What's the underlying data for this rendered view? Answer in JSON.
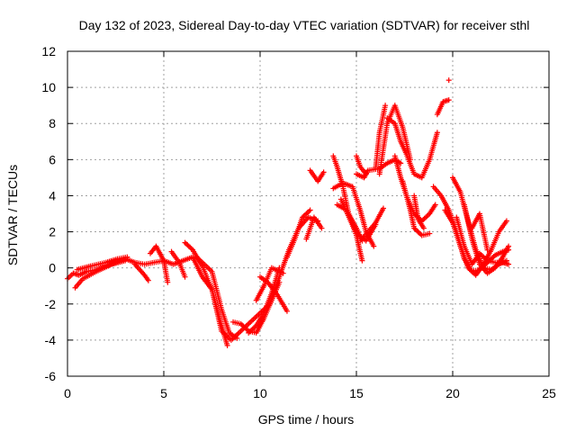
{
  "chart_data": {
    "type": "scatter",
    "title": "Day 132 of 2023, Sidereal Day-to-day VTEC variation (SDTVAR) for receiver sthl",
    "xlabel": "GPS time / hours",
    "ylabel": "SDTVAR / TECUs",
    "xlim": [
      0,
      25
    ],
    "ylim": [
      -6,
      12
    ],
    "xticks": [
      "0",
      "5",
      "10",
      "15",
      "20",
      "25"
    ],
    "yticks": [
      "-6",
      "-4",
      "-2",
      "0",
      "2",
      "4",
      "6",
      "8",
      "10",
      "12"
    ],
    "grid": true,
    "marker": "+",
    "marker_color": "#ff0000",
    "series": [
      {
        "name": "main",
        "x": [
          0.0,
          0.3,
          0.6,
          1.0,
          1.5,
          2.0,
          2.5,
          3.0,
          3.5,
          4.0,
          4.5,
          5.0,
          5.5,
          6.0,
          6.5,
          7.0,
          7.5,
          8.0,
          8.5,
          9.0,
          9.5,
          10.0,
          10.5,
          11.0,
          11.5,
          12.0,
          12.5,
          13.0
        ],
        "y": [
          -0.6,
          -0.3,
          -0.4,
          -0.2,
          -0.1,
          0.1,
          0.3,
          0.5,
          0.3,
          0.2,
          0.3,
          0.4,
          0.2,
          0.4,
          0.6,
          -0.5,
          -1.2,
          -3.5,
          -4.0,
          -3.5,
          -3.0,
          -2.5,
          -2.0,
          -0.5,
          1.0,
          2.2,
          2.8,
          2.6
        ]
      },
      {
        "name": "s1",
        "x": [
          0.4,
          0.8,
          1.5,
          2.3,
          3.0
        ],
        "y": [
          -1.1,
          -0.6,
          -0.2,
          0.2,
          0.4
        ]
      },
      {
        "name": "s2",
        "x": [
          0.5,
          1.2,
          2.0,
          2.6,
          3.1
        ],
        "y": [
          -0.1,
          0.1,
          0.3,
          0.5,
          0.6
        ]
      },
      {
        "name": "s3",
        "x": [
          3.5,
          4.0,
          4.2
        ],
        "y": [
          0.2,
          -0.4,
          -0.7
        ]
      },
      {
        "name": "s4",
        "x": [
          4.3,
          4.6,
          5.0,
          5.2
        ],
        "y": [
          0.8,
          1.2,
          0.4,
          -0.8
        ]
      },
      {
        "name": "s5",
        "x": [
          5.4,
          5.8,
          6.1
        ],
        "y": [
          0.9,
          0.3,
          -0.5
        ]
      },
      {
        "name": "s6",
        "x": [
          6.1,
          6.5,
          7.0,
          7.5,
          8.0,
          8.3
        ],
        "y": [
          1.4,
          1.0,
          0.1,
          -1.2,
          -3.2,
          -4.3
        ]
      },
      {
        "name": "s7",
        "x": [
          6.7,
          7.5,
          8.0,
          8.4,
          8.8
        ],
        "y": [
          0.6,
          -0.2,
          -2.3,
          -3.6,
          -3.9
        ]
      },
      {
        "name": "s8",
        "x": [
          8.6,
          9.0,
          9.4,
          9.8,
          10.2,
          10.6,
          11.0
        ],
        "y": [
          -3.0,
          -3.1,
          -3.5,
          -3.6,
          -2.8,
          -1.8,
          -0.8
        ]
      },
      {
        "name": "s9",
        "x": [
          9.4,
          9.8,
          10.2,
          10.6,
          11.0
        ],
        "y": [
          -3.6,
          -3.2,
          -2.5,
          -1.4,
          0.0
        ]
      },
      {
        "name": "s10",
        "x": [
          9.8,
          10.2,
          10.6,
          11.2
        ],
        "y": [
          -1.8,
          -1.0,
          0.0,
          -0.3
        ]
      },
      {
        "name": "s11",
        "x": [
          10.0,
          10.4,
          10.9,
          11.4
        ],
        "y": [
          -0.5,
          -0.8,
          -1.5,
          -2.4
        ]
      },
      {
        "name": "s12",
        "x": [
          11.4,
          11.8,
          12.2,
          12.6
        ],
        "y": [
          0.6,
          1.6,
          2.8,
          3.2
        ]
      },
      {
        "name": "s13",
        "x": [
          12.4,
          12.8,
          13.2
        ],
        "y": [
          1.6,
          2.8,
          2.2
        ]
      },
      {
        "name": "s14",
        "x": [
          12.6,
          13.0,
          13.3
        ],
        "y": [
          5.4,
          4.8,
          5.3
        ]
      },
      {
        "name": "s15",
        "x": [
          13.8,
          14.0,
          14.3,
          14.6,
          15.0,
          15.3
        ],
        "y": [
          6.2,
          5.6,
          4.5,
          3.0,
          2.2,
          1.5
        ]
      },
      {
        "name": "s16",
        "x": [
          13.8,
          14.3,
          14.8,
          15.2,
          15.5,
          15.9
        ],
        "y": [
          4.4,
          4.7,
          4.5,
          3.2,
          2.0,
          1.2
        ]
      },
      {
        "name": "s17",
        "x": [
          14.0,
          14.5,
          15.0,
          15.3
        ],
        "y": [
          3.5,
          3.2,
          1.8,
          0.4
        ]
      },
      {
        "name": "s18",
        "x": [
          14.2,
          14.7,
          15.1,
          15.5,
          16.0
        ],
        "y": [
          3.8,
          2.6,
          1.8,
          1.5,
          2.4
        ]
      },
      {
        "name": "s19",
        "x": [
          15.0,
          15.4,
          15.6,
          16.2,
          16.6,
          17.0,
          17.3
        ],
        "y": [
          5.2,
          5.0,
          5.4,
          5.5,
          5.8,
          6.0,
          5.8
        ]
      },
      {
        "name": "s20",
        "x": [
          15.0,
          15.2,
          15.5
        ],
        "y": [
          6.2,
          5.6,
          5.2
        ]
      },
      {
        "name": "s21",
        "x": [
          15.2,
          15.6,
          16.0,
          16.4
        ],
        "y": [
          1.5,
          2.0,
          2.5,
          3.3
        ]
      },
      {
        "name": "s22",
        "x": [
          16.0,
          16.2,
          16.5
        ],
        "y": [
          5.5,
          7.5,
          9.0
        ]
      },
      {
        "name": "s23",
        "x": [
          16.2,
          16.6,
          17.0,
          17.4,
          17.8
        ],
        "y": [
          5.2,
          8.0,
          9.0,
          7.8,
          6.0
        ]
      },
      {
        "name": "s24",
        "x": [
          16.6,
          17.0,
          17.3,
          17.6,
          18.0,
          18.4,
          18.8,
          19.2
        ],
        "y": [
          8.3,
          8.0,
          7.0,
          6.3,
          5.2,
          5.0,
          6.0,
          7.5
        ]
      },
      {
        "name": "s25",
        "x": [
          17.0,
          17.3,
          17.6,
          18.0,
          18.4,
          18.8,
          19.1
        ],
        "y": [
          6.2,
          5.0,
          4.0,
          3.0,
          2.6,
          3.0,
          3.5
        ]
      },
      {
        "name": "s26",
        "x": [
          17.4,
          17.8,
          18.0,
          18.4,
          18.8
        ],
        "y": [
          4.8,
          3.2,
          2.2,
          1.8,
          1.9
        ]
      },
      {
        "name": "s27",
        "x": [
          18.0,
          18.2,
          18.5
        ],
        "y": [
          4.0,
          2.7,
          2.2
        ]
      },
      {
        "name": "s28",
        "x": [
          19.2,
          19.5,
          19.8
        ],
        "y": [
          8.5,
          9.2,
          9.3
        ]
      },
      {
        "name": "s29",
        "x": [
          19.8
        ],
        "y": [
          10.4
        ]
      },
      {
        "name": "s30",
        "x": [
          19.0,
          19.4,
          19.8,
          20.2,
          20.6,
          21.0,
          21.4,
          21.8,
          22.2,
          22.6,
          22.9
        ],
        "y": [
          4.5,
          4.0,
          3.2,
          2.0,
          0.5,
          -0.2,
          -0.1,
          0.3,
          0.7,
          0.9,
          1.0
        ]
      },
      {
        "name": "s31",
        "x": [
          19.6,
          20.0,
          20.4,
          20.8,
          21.2,
          21.6,
          22.0,
          22.4,
          22.8
        ],
        "y": [
          3.2,
          2.5,
          1.2,
          0.0,
          -0.4,
          0.2,
          1.0,
          2.0,
          2.6
        ]
      },
      {
        "name": "s32",
        "x": [
          20.0,
          20.4,
          20.8,
          21.2,
          21.6,
          22.0,
          22.4,
          22.8
        ],
        "y": [
          5.0,
          4.2,
          2.6,
          1.0,
          0.0,
          -0.1,
          0.2,
          0.4
        ]
      },
      {
        "name": "s33",
        "x": [
          20.2,
          20.6,
          21.0,
          21.4,
          21.8,
          22.2,
          22.6,
          22.9
        ],
        "y": [
          2.8,
          1.2,
          0.2,
          0.8,
          0.4,
          0.3,
          0.3,
          0.2
        ]
      },
      {
        "name": "s34",
        "x": [
          20.6,
          21.0,
          21.4,
          21.8,
          22.2,
          22.6,
          22.9
        ],
        "y": [
          3.5,
          1.6,
          0.2,
          -0.3,
          0.0,
          0.6,
          1.2
        ]
      },
      {
        "name": "s35",
        "x": [
          21.0,
          21.4,
          21.8
        ],
        "y": [
          2.2,
          3.0,
          1.0
        ]
      }
    ]
  }
}
